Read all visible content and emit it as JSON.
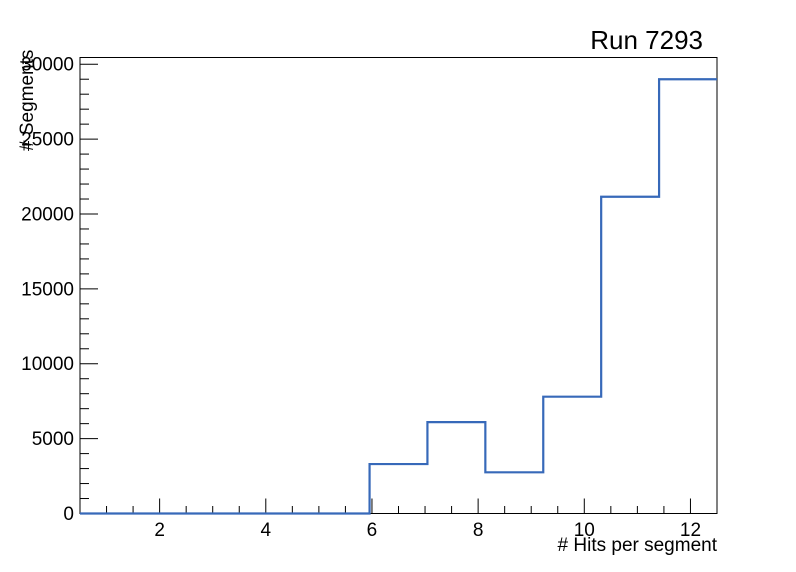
{
  "chart_data": {
    "type": "bar",
    "subtype": "step-histogram",
    "title": "Run 7293",
    "xlabel": "# Hits per segment",
    "ylabel": "# Segments",
    "xlim": [
      0.5,
      12.5
    ],
    "ylim": [
      0,
      30450
    ],
    "n_bins": 11,
    "bin_edges": [
      0.5,
      1.591,
      2.682,
      3.773,
      4.864,
      5.955,
      7.045,
      8.136,
      9.227,
      10.318,
      11.409,
      12.5
    ],
    "values": [
      0,
      0,
      0,
      0,
      0,
      3300,
      6100,
      2750,
      7800,
      21150,
      29000
    ],
    "x_major_ticks": [
      2,
      4,
      6,
      8,
      10,
      12
    ],
    "x_minor_tick_step": 0.5,
    "y_major_ticks": [
      0,
      5000,
      10000,
      15000,
      20000,
      25000,
      30000
    ],
    "y_minor_tick_step": 1000,
    "grid": false,
    "legend": null,
    "line_color": "#3769b9",
    "frame_color": "#000000",
    "background_color": "#ffffff",
    "text_color": "#000000"
  }
}
